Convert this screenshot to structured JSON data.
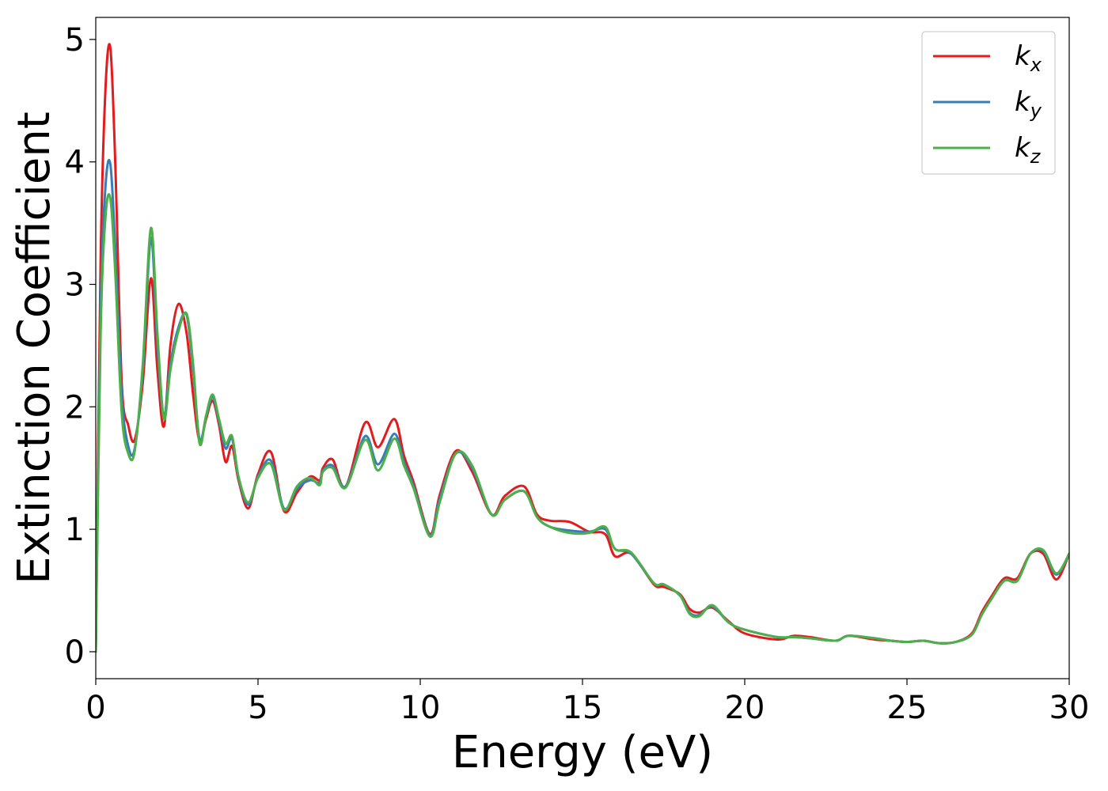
{
  "chart_data": {
    "type": "line",
    "xlabel": "Energy (eV)",
    "ylabel": "Extinction Coefficient",
    "xlim": [
      0,
      30
    ],
    "ylim": [
      -0.22,
      5.18
    ],
    "xticks": [
      0,
      5,
      10,
      15,
      20,
      25,
      30
    ],
    "yticks": [
      0,
      1,
      2,
      3,
      4,
      5
    ],
    "grid": false,
    "legend_position": "top-right",
    "series": [
      {
        "name": "k_x",
        "base": "k",
        "sub": "x",
        "color": "#e41a1c",
        "x": [
          0,
          0.15,
          0.3,
          0.45,
          0.6,
          0.8,
          1.0,
          1.2,
          1.45,
          1.7,
          1.9,
          2.1,
          2.3,
          2.55,
          2.8,
          3.0,
          3.2,
          3.4,
          3.6,
          3.8,
          4.0,
          4.2,
          4.4,
          4.7,
          5.0,
          5.4,
          5.8,
          6.2,
          6.6,
          6.9,
          7.0,
          7.3,
          7.7,
          8.3,
          8.7,
          9.2,
          9.5,
          9.8,
          10.3,
          10.6,
          11.1,
          11.6,
          12.2,
          12.6,
          13.2,
          13.6,
          14.0,
          14.6,
          15.2,
          15.7,
          16.0,
          16.5,
          17.2,
          17.5,
          18.0,
          18.3,
          18.6,
          19.0,
          19.5,
          20.0,
          21.0,
          21.5,
          22.0,
          22.8,
          23.2,
          24.0,
          24.5,
          25.0,
          25.5,
          26.0,
          26.5,
          27.0,
          27.3,
          27.6,
          28.0,
          28.4,
          28.8,
          29.2,
          29.6,
          30.0
        ],
        "y": [
          0,
          3.2,
          4.6,
          4.93,
          4.0,
          2.2,
          1.85,
          1.73,
          2.2,
          3.05,
          2.3,
          1.84,
          2.5,
          2.84,
          2.6,
          2.1,
          1.72,
          1.9,
          2.05,
          1.85,
          1.55,
          1.68,
          1.4,
          1.17,
          1.45,
          1.63,
          1.15,
          1.3,
          1.43,
          1.4,
          1.5,
          1.57,
          1.35,
          1.87,
          1.67,
          1.9,
          1.6,
          1.38,
          0.96,
          1.28,
          1.64,
          1.47,
          1.12,
          1.27,
          1.35,
          1.12,
          1.07,
          1.06,
          0.98,
          0.96,
          0.78,
          0.8,
          0.55,
          0.53,
          0.47,
          0.35,
          0.32,
          0.36,
          0.25,
          0.15,
          0.1,
          0.13,
          0.12,
          0.09,
          0.13,
          0.1,
          0.09,
          0.08,
          0.09,
          0.07,
          0.08,
          0.15,
          0.32,
          0.45,
          0.6,
          0.6,
          0.8,
          0.8,
          0.59,
          0.8
        ]
      },
      {
        "name": "k_y",
        "base": "k",
        "sub": "y",
        "color": "#377eb8",
        "x": [
          0,
          0.15,
          0.3,
          0.45,
          0.6,
          0.8,
          1.0,
          1.2,
          1.45,
          1.7,
          1.9,
          2.1,
          2.3,
          2.55,
          2.8,
          3.0,
          3.2,
          3.4,
          3.6,
          3.8,
          4.0,
          4.2,
          4.4,
          4.7,
          5.0,
          5.4,
          5.8,
          6.2,
          6.6,
          6.9,
          7.0,
          7.3,
          7.7,
          8.3,
          8.7,
          9.2,
          9.5,
          9.8,
          10.3,
          10.6,
          11.1,
          11.6,
          12.2,
          12.6,
          13.2,
          13.6,
          14.0,
          14.6,
          15.2,
          15.7,
          16.0,
          16.5,
          17.2,
          17.5,
          18.0,
          18.3,
          18.6,
          19.0,
          19.5,
          20.0,
          21.0,
          21.5,
          22.0,
          22.8,
          23.2,
          24.0,
          24.5,
          25.0,
          25.5,
          26.0,
          26.5,
          27.0,
          27.3,
          27.6,
          28.0,
          28.4,
          28.8,
          29.2,
          29.6,
          30.0
        ],
        "y": [
          0,
          2.8,
          3.8,
          3.98,
          3.3,
          2.1,
          1.68,
          1.66,
          2.3,
          3.38,
          2.5,
          1.92,
          2.35,
          2.65,
          2.75,
          2.3,
          1.73,
          1.92,
          2.08,
          1.88,
          1.66,
          1.74,
          1.42,
          1.2,
          1.43,
          1.56,
          1.17,
          1.33,
          1.4,
          1.38,
          1.48,
          1.52,
          1.35,
          1.76,
          1.53,
          1.78,
          1.55,
          1.35,
          0.95,
          1.25,
          1.62,
          1.5,
          1.12,
          1.24,
          1.31,
          1.1,
          1.02,
          0.99,
          0.98,
          1.0,
          0.84,
          0.8,
          0.56,
          0.55,
          0.46,
          0.32,
          0.3,
          0.37,
          0.24,
          0.18,
          0.12,
          0.12,
          0.11,
          0.09,
          0.13,
          0.11,
          0.09,
          0.08,
          0.09,
          0.07,
          0.08,
          0.14,
          0.3,
          0.43,
          0.58,
          0.58,
          0.8,
          0.82,
          0.63,
          0.8
        ]
      },
      {
        "name": "k_z",
        "base": "k",
        "sub": "z",
        "color": "#4daf4a",
        "x": [
          0,
          0.15,
          0.3,
          0.45,
          0.6,
          0.8,
          1.0,
          1.2,
          1.45,
          1.7,
          1.9,
          2.1,
          2.3,
          2.55,
          2.8,
          3.0,
          3.2,
          3.4,
          3.6,
          3.8,
          4.0,
          4.2,
          4.4,
          4.7,
          5.0,
          5.4,
          5.8,
          6.2,
          6.6,
          6.9,
          7.0,
          7.3,
          7.7,
          8.3,
          8.7,
          9.2,
          9.5,
          9.8,
          10.3,
          10.6,
          11.1,
          11.6,
          12.2,
          12.6,
          13.2,
          13.6,
          14.0,
          14.6,
          15.2,
          15.7,
          16.0,
          16.5,
          17.2,
          17.5,
          18.0,
          18.3,
          18.6,
          19.0,
          19.5,
          20.0,
          21.0,
          21.5,
          22.0,
          22.8,
          23.2,
          24.0,
          24.5,
          25.0,
          25.5,
          26.0,
          26.5,
          27.0,
          27.3,
          27.6,
          28.0,
          28.4,
          28.8,
          29.2,
          29.6,
          30.0
        ],
        "y": [
          0,
          2.6,
          3.55,
          3.7,
          3.1,
          1.95,
          1.62,
          1.64,
          2.35,
          3.46,
          2.6,
          1.9,
          2.3,
          2.62,
          2.76,
          2.35,
          1.7,
          1.93,
          2.1,
          1.9,
          1.7,
          1.76,
          1.43,
          1.22,
          1.42,
          1.53,
          1.16,
          1.35,
          1.42,
          1.36,
          1.47,
          1.5,
          1.34,
          1.73,
          1.48,
          1.74,
          1.52,
          1.33,
          0.94,
          1.22,
          1.62,
          1.52,
          1.12,
          1.24,
          1.31,
          1.1,
          1.02,
          0.97,
          0.97,
          1.02,
          0.84,
          0.81,
          0.56,
          0.55,
          0.46,
          0.31,
          0.29,
          0.38,
          0.24,
          0.18,
          0.12,
          0.12,
          0.11,
          0.09,
          0.13,
          0.11,
          0.09,
          0.08,
          0.09,
          0.07,
          0.08,
          0.14,
          0.3,
          0.43,
          0.58,
          0.58,
          0.8,
          0.83,
          0.64,
          0.8
        ]
      }
    ]
  }
}
